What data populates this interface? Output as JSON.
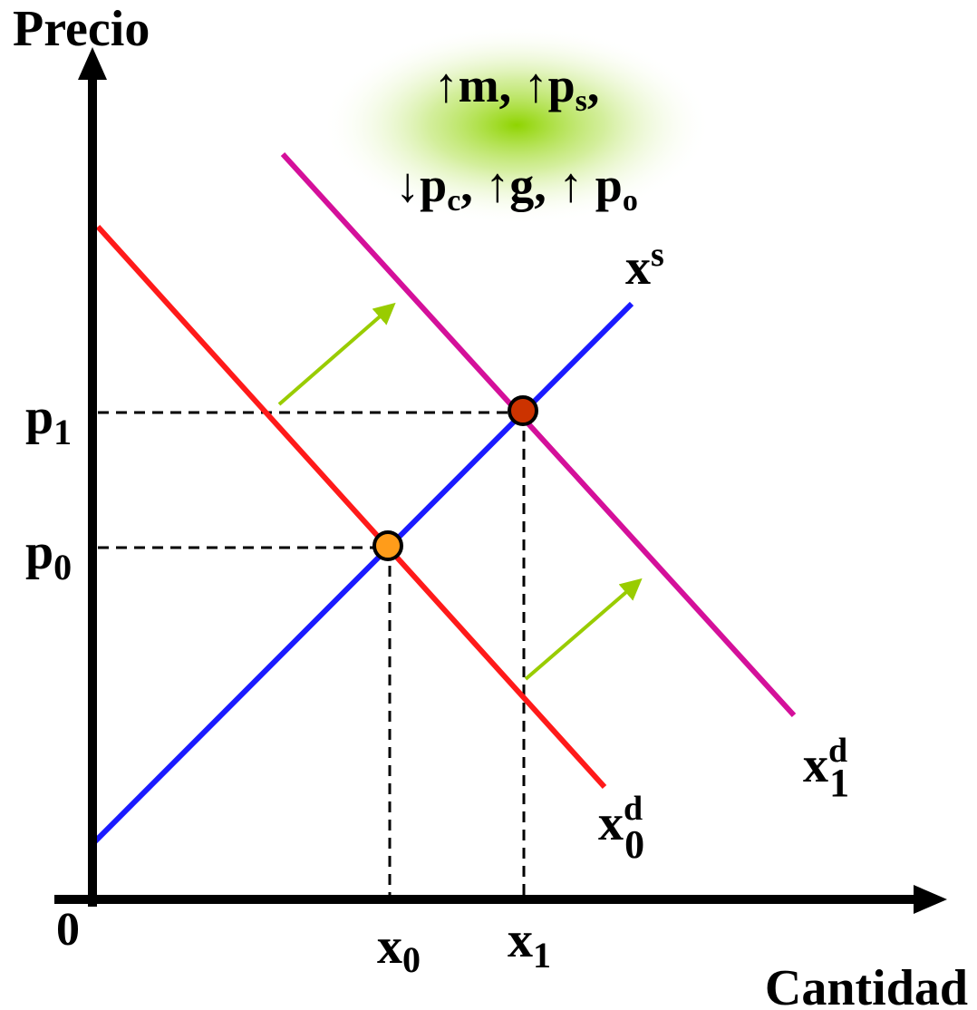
{
  "axes": {
    "y_label": "Precio",
    "x_label": "Cantidad",
    "origin_label": "0"
  },
  "curves": {
    "supply": {
      "base": "x",
      "sup": "s",
      "color": "#1a1aff"
    },
    "demand0": {
      "base": "x",
      "sup": "d",
      "sub": "0",
      "color": "#ff1a1a"
    },
    "demand1": {
      "base": "x",
      "sup": "d",
      "sub": "1",
      "color": "#d4109a"
    }
  },
  "equilibria": {
    "e0": {
      "price_base": "p",
      "price_sub": "0",
      "qty_base": "x",
      "qty_sub": "0",
      "color": "#ff9c1a"
    },
    "e1": {
      "price_base": "p",
      "price_sub": "1",
      "qty_base": "x",
      "qty_sub": "1",
      "color": "#cc3300"
    }
  },
  "shift_arrow_color": "#99cc00",
  "causes": {
    "line1": [
      {
        "arrow": "↑",
        "base": "m",
        "sub": "",
        "after": ", "
      },
      {
        "arrow": "↑",
        "base": "p",
        "sub": "s",
        "after": ","
      }
    ],
    "line2": [
      {
        "arrow": "↓",
        "base": "p",
        "sub": "c",
        "after": ", "
      },
      {
        "arrow": "↑",
        "base": "g",
        "sub": "",
        "after": ", "
      },
      {
        "arrow": "↑ ",
        "base": "p",
        "sub": "o",
        "after": ""
      }
    ]
  }
}
